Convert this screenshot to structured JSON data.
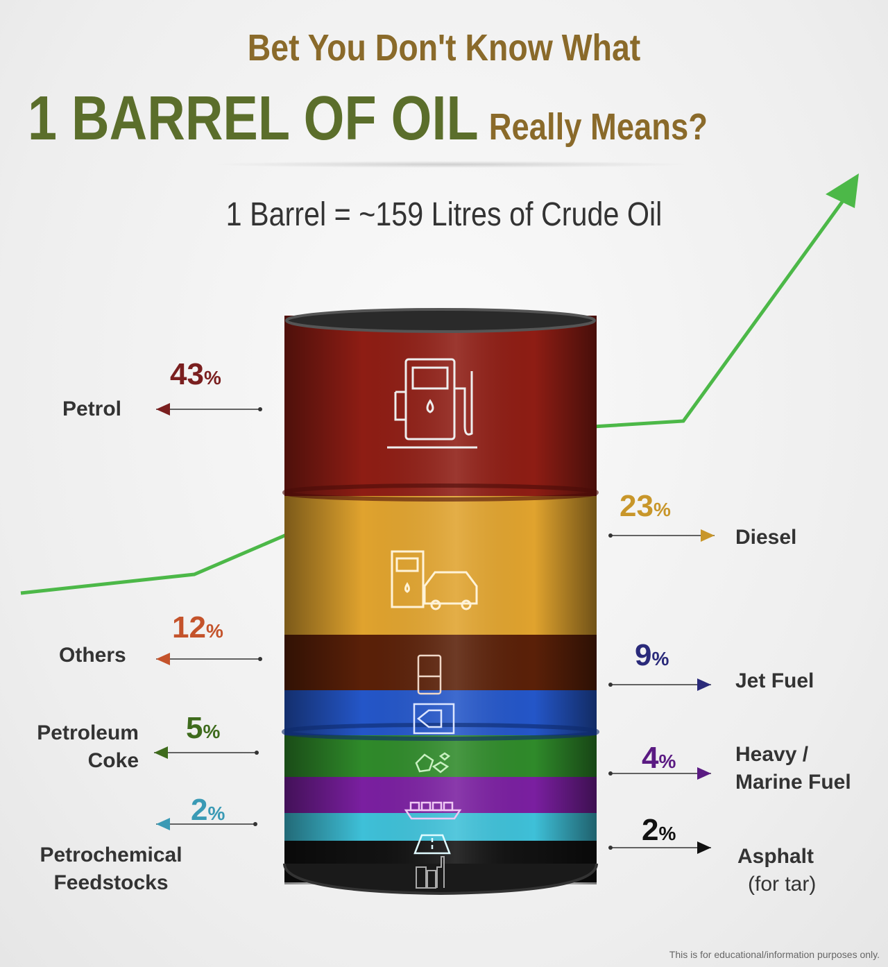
{
  "title": {
    "line1": "Bet You Don't Know What",
    "line2_main": "1 BARREL OF OIL",
    "line2_tail": "Really Means?"
  },
  "subtitle": "1 Barrel = ~159 Litres of Crude Oil",
  "products": [
    {
      "name": "Petrol",
      "percent": 43,
      "color": "#7a1f1f",
      "band_color": "#8e1d14",
      "side": "left",
      "icon": "fuel-pump-icon"
    },
    {
      "name": "Diesel",
      "percent": 23,
      "color": "#c8962a",
      "band_color": "#e0a32e",
      "side": "right",
      "icon": "fuel-station-car-icon"
    },
    {
      "name": "Others",
      "percent": 12,
      "color": "#c4532b",
      "band_color": "#5a2008",
      "side": "left",
      "icon": "oil-barrel-icon"
    },
    {
      "name": "Jet Fuel",
      "percent": 9,
      "color": "#2a2a7a",
      "band_color": "#2456c8",
      "side": "right",
      "icon": "airplane-icon"
    },
    {
      "name": "Petroleum Coke",
      "line1": "Petroleum",
      "line2": "Coke",
      "percent": 5,
      "color": "#3e6b1c",
      "band_color": "#2f8a2a",
      "side": "left",
      "icon": "coke-rocks-icon"
    },
    {
      "name": "Heavy / Marine Fuel",
      "line1": "Heavy /",
      "line2": "Marine Fuel",
      "percent": 4,
      "color": "#5a1a82",
      "band_color": "#7a1fa0",
      "side": "right",
      "icon": "cargo-ship-icon"
    },
    {
      "name": "Petrochemical Feedstocks",
      "line1": "Petrochemical",
      "line2": "Feedstocks",
      "percent": 2,
      "color": "#3a9ab5",
      "band_color": "#3ec0d8",
      "side": "left",
      "icon": "factory-icon"
    },
    {
      "name": "Asphalt (for tar)",
      "line1": "Asphalt",
      "line2": "(for tar)",
      "percent": 2,
      "color": "#111111",
      "band_color": "#111111",
      "side": "right",
      "icon": "road-icon"
    }
  ],
  "percent_sign": "%",
  "trend_color": "#4cb848",
  "footer": "This is for educational/information purposes only."
}
